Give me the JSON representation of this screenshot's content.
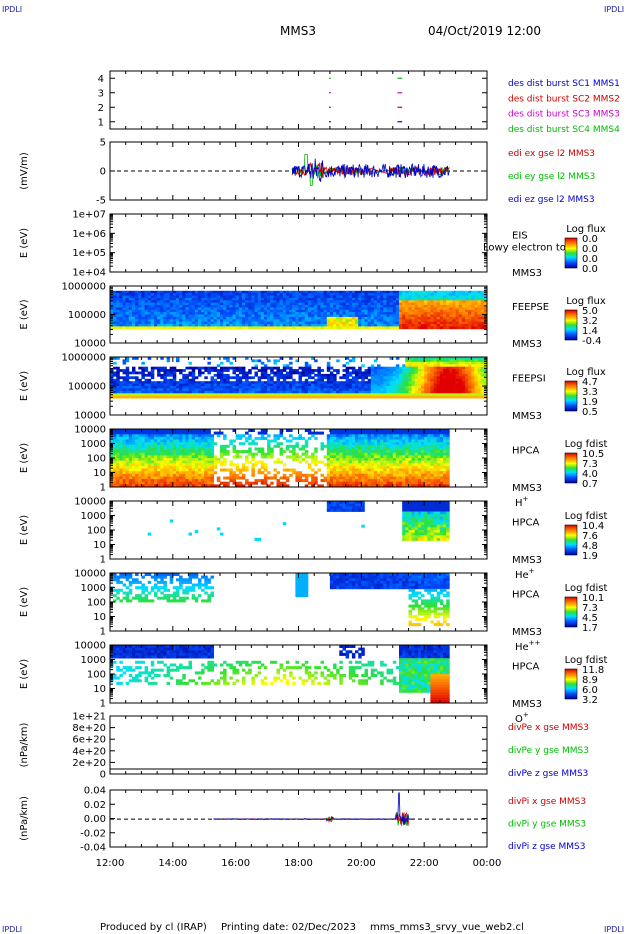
{
  "header": {
    "corner_tl": "IPDLI",
    "corner_tr": "IPDLI",
    "corner_bl": "IPDLI",
    "corner_br": "IPDLI",
    "title": "MMS3",
    "datetime": "04/Oct/2019 12:00"
  },
  "footer": {
    "produced_by": "Produced by cl (IRAP)",
    "printing_date": "Printing date: 02/Dec/2023",
    "filename": "mms_mms3_srvy_vue_web2.cl"
  },
  "colors": {
    "mms1": "#0000cc",
    "mms2": "#cc0000",
    "mms3": "#cc00cc",
    "mms4": "#00bb00",
    "red": "#cc0000",
    "green": "#00bb00",
    "blue": "#0000cc"
  },
  "chart_data": {
    "type": "multi-panel time series / spectrogram stack",
    "x_axis": {
      "ticks": [
        "12:00",
        "14:00",
        "16:00",
        "18:00",
        "20:00",
        "22:00",
        "00:00"
      ],
      "range_hours": [
        12,
        24
      ]
    },
    "panels": [
      {
        "id": "burst",
        "type": "line",
        "ylabel": "",
        "yticks": [
          "4",
          "3",
          "2",
          "1"
        ],
        "ylim": [
          0.5,
          4.5
        ],
        "series": [
          {
            "name": "des dist burst SC1 MMS1",
            "color": "#0000cc",
            "y": 1,
            "segments_hours": [
              [
                18.97,
                19.03
              ],
              [
                21.15,
                21.3
              ]
            ]
          },
          {
            "name": "des dist burst SC2 MMS2",
            "color": "#cc0000",
            "y": 2,
            "segments_hours": [
              [
                18.97,
                19.03
              ],
              [
                21.15,
                21.3
              ]
            ]
          },
          {
            "name": "des dist burst SC3 MMS3",
            "color": "#cc00cc",
            "y": 3,
            "segments_hours": [
              [
                18.97,
                19.03
              ],
              [
                21.15,
                21.3
              ]
            ]
          },
          {
            "name": "des dist burst SC4 MMS4",
            "color": "#00bb00",
            "y": 4,
            "segments_hours": [
              [
                18.97,
                19.03
              ],
              [
                21.15,
                21.3
              ]
            ]
          }
        ]
      },
      {
        "id": "edi",
        "type": "line",
        "ylabel": "(mV/m)",
        "yticks": [
          "5",
          "0",
          "-5"
        ],
        "ylim": [
          -7,
          7
        ],
        "dashed_zero": true,
        "series": [
          {
            "name": "edi ex gse l2 MMS3",
            "color": "#cc0000"
          },
          {
            "name": "edi ey gse l2 MMS3",
            "color": "#00bb00"
          },
          {
            "name": "edi ez gse l2 MMS3",
            "color": "#0000cc"
          }
        ],
        "data_range_hours": [
          17.8,
          22.8
        ]
      },
      {
        "id": "eis",
        "type": "heatmap",
        "ylabel": "E (eV)",
        "yticks": [
          "1e+07",
          "1e+06",
          "1e+05",
          "1e+04"
        ],
        "instrument": "EIS",
        "label_text": "Lowy electron to",
        "sc": "MMS3",
        "cbar_title": "Log flux",
        "cbar_ticks": [
          "0.0",
          "0.0",
          "0.0",
          "0.0"
        ],
        "empty": true
      },
      {
        "id": "feepse",
        "type": "heatmap",
        "ylabel": "E (eV)",
        "yticks": [
          "1000000",
          "100000",
          "10000"
        ],
        "instrument": "FEEPSE",
        "sc": "MMS3",
        "cbar_title": "Log flux",
        "cbar_ticks": [
          "5.0",
          "3.2",
          "1.4",
          "-0.4"
        ]
      },
      {
        "id": "feepsi",
        "type": "heatmap",
        "ylabel": "E (eV)",
        "yticks": [
          "1000000",
          "100000",
          "10000"
        ],
        "instrument": "FEEPSI",
        "sc": "MMS3",
        "cbar_title": "Log flux",
        "cbar_ticks": [
          "4.7",
          "3.3",
          "1.9",
          "0.5"
        ]
      },
      {
        "id": "hpca_h",
        "type": "heatmap",
        "ylabel": "E (eV)",
        "yticks": [
          "10000",
          "1000",
          "100",
          "10",
          "1"
        ],
        "instrument": "HPCA",
        "sc": "MMS3",
        "species": "H",
        "charge": "+",
        "cbar_title": "Log fdist",
        "cbar_ticks": [
          "10.5",
          "7.3",
          "4.0",
          "0.7"
        ]
      },
      {
        "id": "hpca_he",
        "type": "heatmap",
        "ylabel": "E (eV)",
        "yticks": [
          "10000",
          "1000",
          "100",
          "10",
          "1"
        ],
        "instrument": "HPCA",
        "sc": "MMS3",
        "species": "He",
        "charge": "+",
        "cbar_title": "Log fdist",
        "cbar_ticks": [
          "10.4",
          "7.6",
          "4.8",
          "1.9"
        ]
      },
      {
        "id": "hpca_hepp",
        "type": "heatmap",
        "ylabel": "E (eV)",
        "yticks": [
          "10000",
          "1000",
          "100",
          "10",
          "1"
        ],
        "instrument": "HPCA",
        "sc": "MMS3",
        "species": "He",
        "charge": "++",
        "cbar_title": "Log fdist",
        "cbar_ticks": [
          "10.1",
          "7.3",
          "4.5",
          "1.7"
        ]
      },
      {
        "id": "hpca_o",
        "type": "heatmap",
        "ylabel": "E (eV)",
        "yticks": [
          "10000",
          "1000",
          "100",
          "10",
          "1"
        ],
        "instrument": "HPCA",
        "sc": "MMS3",
        "species": "O",
        "charge": "+",
        "cbar_title": "Log fdist",
        "cbar_ticks": [
          "11.8",
          "8.9",
          "6.0",
          "3.2"
        ]
      },
      {
        "id": "divpe",
        "type": "line",
        "ylabel": "(nPa/km)",
        "yticks": [
          "1e+21",
          "8e+20",
          "6e+20",
          "4e+20",
          "2e+20",
          "0"
        ],
        "ylim": [
          -1e+20,
          1.05e+21
        ],
        "series": [
          {
            "name": "divPe x gse MMS3",
            "color": "#cc0000"
          },
          {
            "name": "divPe y gse MMS3",
            "color": "#00bb00"
          },
          {
            "name": "divPe z gse MMS3",
            "color": "#0000cc"
          }
        ]
      },
      {
        "id": "divpi",
        "type": "line",
        "ylabel": "(nPa/km)",
        "yticks": [
          "0.04",
          "0.02",
          "0.00",
          "-0.02",
          "-0.04"
        ],
        "ylim": [
          -0.048,
          0.05
        ],
        "dashed_zero": true,
        "series": [
          {
            "name": "divPi x gse MMS3",
            "color": "#cc0000"
          },
          {
            "name": "divPi y gse MMS3",
            "color": "#00bb00"
          },
          {
            "name": "divPi z gse MMS3",
            "color": "#0000cc"
          }
        ],
        "data_range_hours": [
          15.3,
          21.7
        ],
        "spike_hour": 21.2,
        "spike_value": 0.045
      }
    ]
  }
}
